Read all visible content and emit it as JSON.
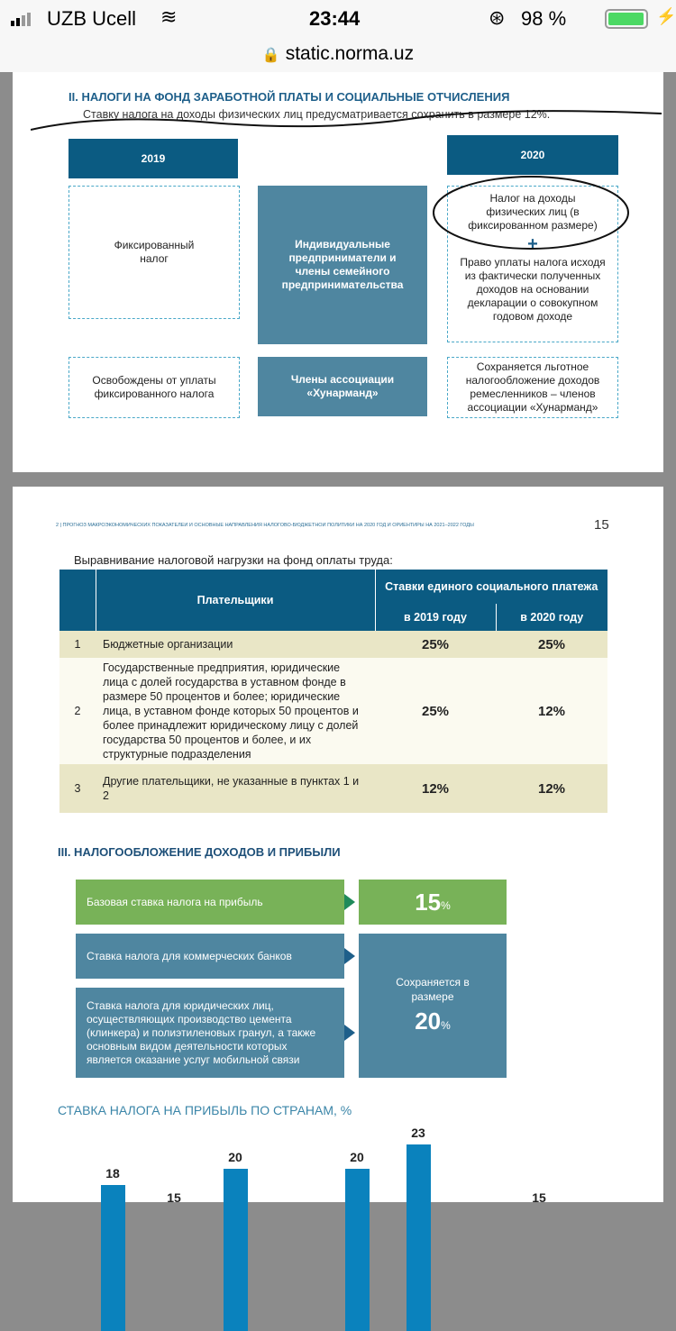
{
  "status": {
    "carrier": "UZB Ucell",
    "time": "23:44",
    "battery": "98 %",
    "battery_level": 98
  },
  "url": "static.norma.uz",
  "page1": {
    "heading": "II. НАЛОГИ НА ФОНД ЗАРАБОТНОЙ ПЛАТЫ И СОЦИАЛЬНЫЕ ОТЧИСЛЕНИЯ",
    "intro": "Ставку налога на доходы физических лиц предусматривается сохранить в размере 12%.",
    "y2019": "2019",
    "y2020": "2020",
    "left1": "Фиксированный налог",
    "center1": "Индивидуальные предприниматели и члены семейного предпринимательства",
    "right1a": "Налог на доходы физических лиц (в фиксированном размере)",
    "plus": "+",
    "right1b": "Право уплаты налога исходя из фактически полученных доходов на основании декларации о совокупном годовом доходе",
    "left2": "Освобождены от уплаты фиксированного налога",
    "center2": "Члены ассоциации «Хунарманд»",
    "right2": "Сохраняется льготное налогообложение доходов ремесленников – членов ассоциации «Хунарманд»"
  },
  "page2": {
    "running_header": "2 | ПРОГНОЗ МАКРОЭКОНОМИЧЕСКИХ ПОКАЗАТЕЛЕЙ И ОСНОВНЫЕ НАПРАВЛЕНИЯ НАЛОГОВО-БЮДЖЕТНОЙ ПОЛИТИКИ НА 2020 ГОД И ОРИЕНТИРЫ НА 2021–2022 ГОДЫ",
    "page_number": "15",
    "table_title": "Выравнивание налоговой нагрузки на фонд оплаты труда:",
    "table": {
      "col_payers": "Плательщики",
      "col_rates": "Ставки единого социального платежа",
      "col_2019": "в 2019 году",
      "col_2020": "в 2020 году",
      "rows": [
        {
          "n": "1",
          "payer": "Бюджетные организации",
          "r2019": "25%",
          "r2020": "25%"
        },
        {
          "n": "2",
          "payer": "Государственные предприятия, юридические лица с долей государства в уставном фонде в размере 50 процентов и более; юридические лица, в уставном фонде которых 50 процентов и более принадлежит юридическому лицу с долей государства 50 процентов и более, и их структурные подразделения",
          "r2019": "25%",
          "r2020": "12%"
        },
        {
          "n": "3",
          "payer": "Другие плательщики, не указанные в пунктах 1 и 2",
          "r2019": "12%",
          "r2020": "12%"
        }
      ]
    },
    "section3": "III. НАЛОГООБЛОЖЕНИЕ ДОХОДОВ И ПРИБЫЛИ",
    "base_rate_label": "Базовая ставка налога на прибыль",
    "base_rate_value": "15",
    "pct": "%",
    "banks_label": "Ставка налога для коммерческих банков",
    "legal_label": "Ставка налога для юридических лиц, осуществляющих производство цемента (клинкера) и полиэтиленовых гранул, а также основным видом деятельности которых является оказание услуг мобильной связи",
    "kept_label": "Сохраняется в размере",
    "kept_value": "20"
  },
  "chart_data": {
    "type": "bar",
    "title": "СТАВКА НАЛОГА НА ПРИБЫЛЬ ПО СТРАНАМ, %",
    "values": [
      18,
      15,
      20,
      20,
      23,
      15
    ],
    "value_labels": [
      "18",
      "15",
      "20",
      "20",
      "23",
      "15"
    ]
  }
}
